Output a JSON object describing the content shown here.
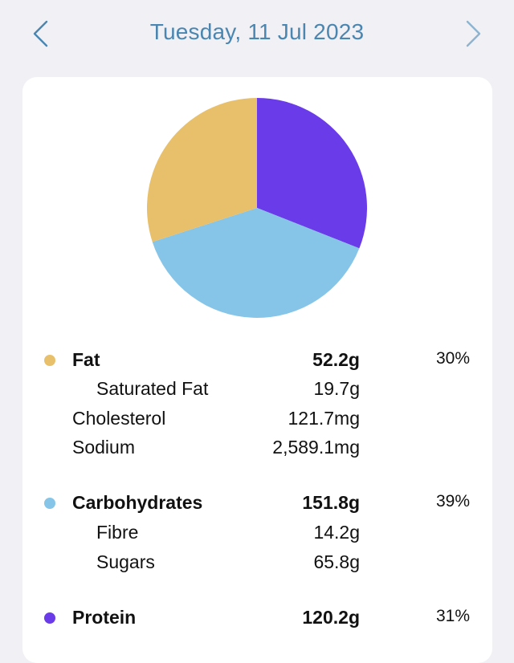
{
  "header": {
    "title": "Tuesday, 11 Jul 2023",
    "prev_icon": "chevron-left-icon",
    "next_icon": "chevron-right-icon",
    "accent_color": "#4a86b0"
  },
  "chart_data": {
    "type": "pie",
    "slices": [
      {
        "name": "Protein",
        "value": 31,
        "color": "#6a3be8"
      },
      {
        "name": "Carbohydrates",
        "value": 39,
        "color": "#86c5e8"
      },
      {
        "name": "Fat",
        "value": 30,
        "color": "#e8c06c"
      }
    ]
  },
  "nutrients": {
    "fat": {
      "label": "Fat",
      "amount": "52.2g",
      "percent": "30%",
      "color": "#e8c06c"
    },
    "saturated_fat": {
      "label": "Saturated Fat",
      "amount": "19.7g"
    },
    "cholesterol": {
      "label": "Cholesterol",
      "amount": "121.7mg"
    },
    "sodium": {
      "label": "Sodium",
      "amount": "2,589.1mg"
    },
    "carbohydrates": {
      "label": "Carbohydrates",
      "amount": "151.8g",
      "percent": "39%",
      "color": "#86c5e8"
    },
    "fibre": {
      "label": "Fibre",
      "amount": "14.2g"
    },
    "sugars": {
      "label": "Sugars",
      "amount": "65.8g"
    },
    "protein": {
      "label": "Protein",
      "amount": "120.2g",
      "percent": "31%",
      "color": "#6a3be8"
    }
  }
}
